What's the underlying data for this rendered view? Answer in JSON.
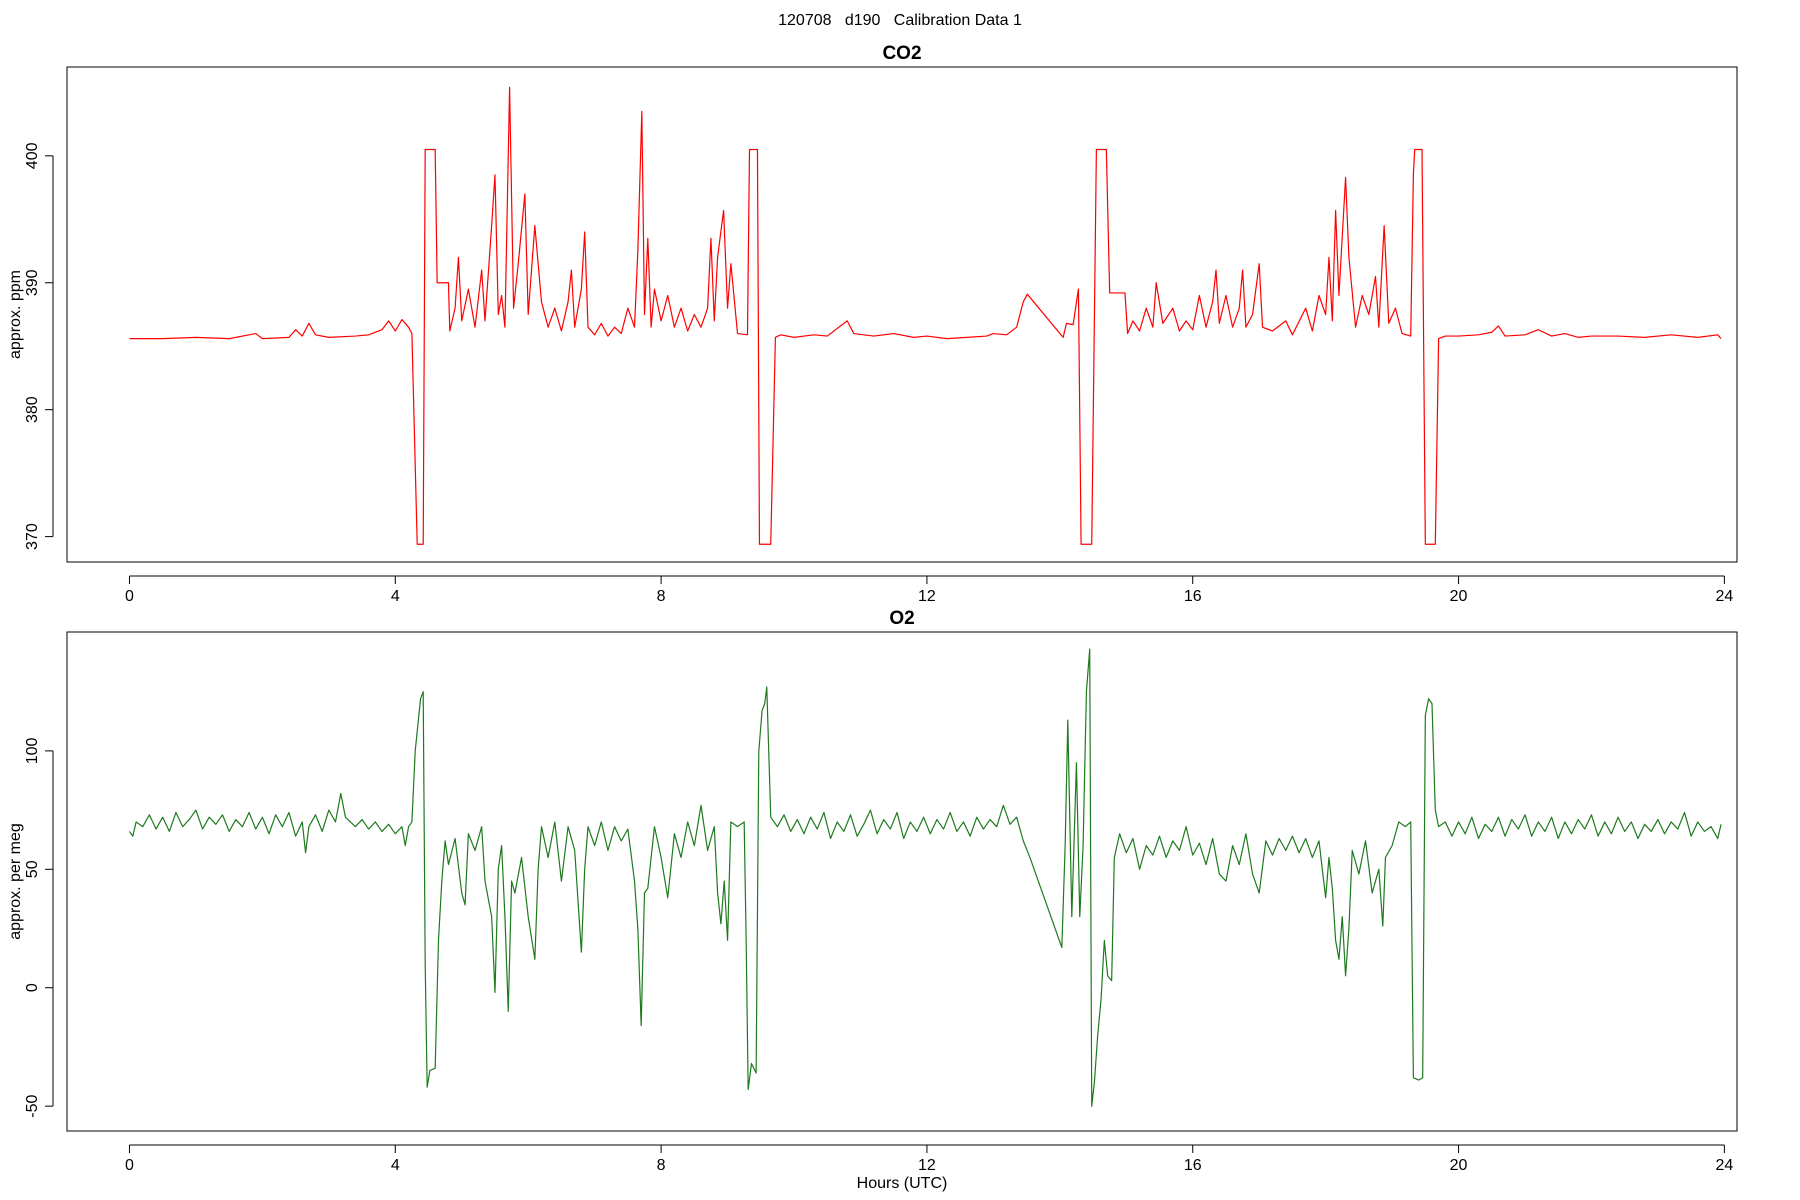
{
  "title": "120708   d190   Calibration Data 1",
  "chart_data": [
    {
      "type": "line",
      "title": "CO2",
      "y_label": "approx. ppm",
      "color": "#ff0000",
      "xlim": [
        -0.94,
        24.19
      ],
      "xticks": [
        0,
        4,
        8,
        12,
        16,
        20,
        24
      ],
      "ylim": [
        368,
        407
      ],
      "yticks": [
        370,
        380,
        390,
        400
      ],
      "x": [
        0.0,
        0.5,
        1.0,
        1.5,
        1.9,
        2.0,
        2.4,
        2.5,
        2.6,
        2.7,
        2.8,
        3.0,
        3.4,
        3.6,
        3.8,
        3.9,
        4.0,
        4.1,
        4.2,
        4.25,
        4.33,
        4.42,
        4.45,
        4.6,
        4.63,
        4.8,
        4.82,
        4.9,
        4.95,
        5.0,
        5.1,
        5.2,
        5.3,
        5.35,
        5.45,
        5.5,
        5.55,
        5.6,
        5.65,
        5.72,
        5.78,
        5.85,
        5.95,
        6.0,
        6.1,
        6.2,
        6.3,
        6.4,
        6.5,
        6.6,
        6.65,
        6.7,
        6.8,
        6.85,
        6.9,
        7.0,
        7.1,
        7.2,
        7.3,
        7.4,
        7.5,
        7.6,
        7.65,
        7.71,
        7.75,
        7.8,
        7.85,
        7.9,
        8.0,
        8.1,
        8.2,
        8.3,
        8.4,
        8.5,
        8.6,
        8.7,
        8.75,
        8.8,
        8.85,
        8.94,
        9.0,
        9.05,
        9.15,
        9.3,
        9.33,
        9.45,
        9.48,
        9.65,
        9.72,
        9.8,
        10.0,
        10.3,
        10.5,
        10.8,
        10.9,
        11.2,
        11.5,
        11.8,
        12.0,
        12.3,
        12.6,
        12.9,
        13.0,
        13.2,
        13.35,
        13.45,
        13.51,
        14.05,
        14.1,
        14.2,
        14.28,
        14.32,
        14.48,
        14.55,
        14.7,
        14.75,
        14.98,
        15.02,
        15.1,
        15.2,
        15.3,
        15.4,
        15.45,
        15.55,
        15.7,
        15.8,
        15.9,
        16.0,
        16.1,
        16.2,
        16.3,
        16.35,
        16.4,
        16.5,
        16.6,
        16.7,
        16.75,
        16.8,
        16.9,
        17.0,
        17.05,
        17.2,
        17.4,
        17.5,
        17.7,
        17.8,
        17.9,
        18.0,
        18.05,
        18.1,
        18.15,
        18.2,
        18.3,
        18.35,
        18.45,
        18.55,
        18.65,
        18.75,
        18.8,
        18.88,
        18.95,
        19.05,
        19.15,
        19.28,
        19.32,
        19.34,
        19.45,
        19.5,
        19.65,
        19.7,
        19.8,
        20.0,
        20.3,
        20.5,
        20.6,
        20.7,
        21.0,
        21.2,
        21.4,
        21.6,
        21.8,
        22.0,
        22.4,
        22.8,
        23.2,
        23.6,
        23.9,
        23.95
      ],
      "values": [
        385.6,
        385.6,
        385.7,
        385.6,
        386.0,
        385.6,
        385.7,
        386.3,
        385.8,
        386.8,
        385.9,
        385.7,
        385.8,
        385.9,
        386.3,
        387.0,
        386.2,
        387.1,
        386.5,
        386.0,
        369.4,
        369.4,
        400.5,
        400.5,
        390.0,
        390.0,
        386.2,
        388.0,
        392.0,
        387.0,
        389.5,
        386.5,
        391.0,
        387.0,
        394.5,
        398.5,
        387.5,
        389.0,
        386.5,
        405.4,
        388.0,
        391.5,
        397.0,
        387.5,
        394.5,
        388.5,
        386.5,
        388.0,
        386.2,
        388.5,
        391.0,
        386.5,
        389.5,
        394.0,
        386.5,
        385.9,
        386.8,
        385.8,
        386.5,
        386.0,
        388.0,
        386.5,
        392.5,
        403.5,
        387.5,
        393.5,
        386.5,
        389.5,
        387.0,
        389.0,
        386.5,
        388.0,
        386.2,
        387.5,
        386.5,
        388.0,
        393.5,
        387.0,
        392.0,
        395.7,
        388.0,
        391.5,
        386.0,
        385.9,
        400.5,
        400.5,
        369.4,
        369.4,
        385.7,
        385.9,
        385.7,
        385.9,
        385.8,
        387.0,
        386.0,
        385.8,
        386.0,
        385.7,
        385.8,
        385.6,
        385.7,
        385.8,
        386.0,
        385.9,
        386.5,
        388.5,
        389.1,
        385.7,
        386.8,
        386.7,
        389.5,
        369.4,
        369.4,
        400.5,
        400.5,
        389.2,
        389.2,
        386.0,
        387.0,
        386.2,
        388.0,
        386.5,
        390.0,
        386.8,
        388.0,
        386.2,
        387.0,
        386.3,
        389.0,
        386.5,
        388.5,
        391.0,
        386.8,
        389.0,
        386.5,
        388.0,
        391.0,
        386.5,
        387.5,
        391.5,
        386.5,
        386.2,
        387.0,
        385.9,
        388.0,
        386.2,
        389.0,
        387.5,
        392.0,
        387.0,
        395.7,
        389.0,
        398.3,
        392.0,
        386.5,
        389.0,
        387.5,
        390.5,
        386.5,
        394.5,
        386.8,
        388.0,
        386.0,
        385.8,
        398.5,
        400.5,
        400.5,
        369.4,
        369.4,
        385.6,
        385.8,
        385.8,
        385.9,
        386.1,
        386.6,
        385.8,
        385.9,
        386.3,
        385.8,
        386.0,
        385.7,
        385.8,
        385.8,
        385.7,
        385.9,
        385.7,
        385.9,
        385.6
      ]
    },
    {
      "type": "line",
      "title": "O2",
      "y_label": "approx. per meg",
      "x_label": "Hours (UTC)",
      "color": "#1e7a1e",
      "xlim": [
        -0.94,
        24.19
      ],
      "xticks": [
        0,
        4,
        8,
        12,
        16,
        20,
        24
      ],
      "ylim": [
        -60.5,
        150.2
      ],
      "yticks": [
        -50,
        0,
        50,
        100
      ],
      "x": [
        0.0,
        0.05,
        0.1,
        0.2,
        0.3,
        0.4,
        0.5,
        0.6,
        0.7,
        0.8,
        0.9,
        1.0,
        1.1,
        1.2,
        1.3,
        1.4,
        1.5,
        1.6,
        1.7,
        1.8,
        1.9,
        2.0,
        2.1,
        2.2,
        2.3,
        2.4,
        2.5,
        2.6,
        2.65,
        2.7,
        2.8,
        2.9,
        3.0,
        3.1,
        3.18,
        3.25,
        3.4,
        3.5,
        3.6,
        3.7,
        3.8,
        3.9,
        4.0,
        4.1,
        4.15,
        4.2,
        4.25,
        4.3,
        4.38,
        4.42,
        4.45,
        4.48,
        4.52,
        4.6,
        4.65,
        4.7,
        4.75,
        4.8,
        4.9,
        5.0,
        5.05,
        5.1,
        5.2,
        5.3,
        5.35,
        5.45,
        5.5,
        5.55,
        5.6,
        5.65,
        5.7,
        5.75,
        5.8,
        5.9,
        6.0,
        6.1,
        6.15,
        6.2,
        6.3,
        6.4,
        6.5,
        6.6,
        6.7,
        6.8,
        6.85,
        6.9,
        7.0,
        7.1,
        7.2,
        7.3,
        7.4,
        7.5,
        7.6,
        7.65,
        7.7,
        7.75,
        7.8,
        7.9,
        8.0,
        8.1,
        8.2,
        8.3,
        8.4,
        8.5,
        8.6,
        8.7,
        8.8,
        8.85,
        8.9,
        8.95,
        9.0,
        9.05,
        9.15,
        9.25,
        9.28,
        9.31,
        9.36,
        9.43,
        9.47,
        9.52,
        9.56,
        9.59,
        9.65,
        9.75,
        9.85,
        9.95,
        10.05,
        10.15,
        10.25,
        10.35,
        10.45,
        10.55,
        10.65,
        10.75,
        10.85,
        10.95,
        11.05,
        11.15,
        11.25,
        11.35,
        11.45,
        11.55,
        11.65,
        11.75,
        11.85,
        11.95,
        12.05,
        12.15,
        12.25,
        12.35,
        12.45,
        12.55,
        12.65,
        12.75,
        12.85,
        12.95,
        13.05,
        13.15,
        13.25,
        13.35,
        13.45,
        13.55,
        14.03,
        14.08,
        14.12,
        14.18,
        14.25,
        14.3,
        14.35,
        14.4,
        14.45,
        14.48,
        14.52,
        14.57,
        14.62,
        14.67,
        14.72,
        14.78,
        14.82,
        14.9,
        15.0,
        15.1,
        15.2,
        15.3,
        15.4,
        15.5,
        15.6,
        15.7,
        15.8,
        15.9,
        16.0,
        16.1,
        16.2,
        16.3,
        16.4,
        16.5,
        16.6,
        16.7,
        16.8,
        16.9,
        17.0,
        17.1,
        17.2,
        17.3,
        17.4,
        17.5,
        17.6,
        17.7,
        17.8,
        17.9,
        18.0,
        18.05,
        18.1,
        18.15,
        18.2,
        18.25,
        18.3,
        18.35,
        18.4,
        18.5,
        18.6,
        18.7,
        18.8,
        18.86,
        18.9,
        19.0,
        19.1,
        19.2,
        19.28,
        19.32,
        19.4,
        19.46,
        19.5,
        19.55,
        19.6,
        19.65,
        19.7,
        19.8,
        19.9,
        20.0,
        20.1,
        20.2,
        20.3,
        20.4,
        20.5,
        20.6,
        20.7,
        20.8,
        20.9,
        21.0,
        21.1,
        21.2,
        21.3,
        21.4,
        21.5,
        21.6,
        21.7,
        21.8,
        21.9,
        22.0,
        22.1,
        22.2,
        22.3,
        22.4,
        22.5,
        22.6,
        22.7,
        22.8,
        22.9,
        23.0,
        23.1,
        23.2,
        23.3,
        23.4,
        23.5,
        23.6,
        23.7,
        23.8,
        23.9,
        23.95
      ],
      "values": [
        66,
        64,
        70,
        68,
        73,
        67,
        72,
        66,
        74,
        68,
        71,
        75,
        67,
        72,
        69,
        73,
        66,
        71,
        68,
        74,
        67,
        72,
        65,
        73,
        68,
        74,
        64,
        70,
        57,
        68,
        73,
        66,
        75,
        70,
        82,
        72,
        68,
        71,
        67,
        70,
        66,
        69,
        65,
        68,
        60,
        68,
        70,
        100,
        122,
        125,
        10,
        -42,
        -35,
        -34,
        20,
        45,
        62,
        52,
        63,
        40,
        35,
        65,
        58,
        68,
        45,
        30,
        -2,
        50,
        60,
        30,
        -10,
        45,
        40,
        55,
        30,
        12,
        50,
        68,
        55,
        70,
        45,
        68,
        58,
        15,
        50,
        68,
        60,
        70,
        58,
        68,
        62,
        67,
        45,
        25,
        -16,
        40,
        42,
        68,
        55,
        38,
        65,
        55,
        70,
        60,
        77,
        58,
        68,
        40,
        27,
        45,
        20,
        70,
        68,
        70,
        20,
        -43,
        -32,
        -36,
        100,
        117,
        120,
        127,
        72,
        68,
        73,
        66,
        71,
        65,
        72,
        67,
        74,
        63,
        70,
        66,
        73,
        64,
        69,
        75,
        65,
        71,
        67,
        74,
        63,
        70,
        66,
        72,
        65,
        71,
        67,
        74,
        66,
        70,
        64,
        72,
        67,
        71,
        68,
        77,
        69,
        72,
        62,
        55,
        17,
        60,
        113,
        30,
        95,
        30,
        60,
        125,
        143,
        -50,
        -40,
        -20,
        -5,
        20,
        5,
        3,
        55,
        65,
        57,
        63,
        50,
        60,
        56,
        64,
        55,
        62,
        58,
        68,
        56,
        61,
        52,
        63,
        48,
        45,
        60,
        52,
        65,
        48,
        40,
        62,
        56,
        63,
        58,
        64,
        57,
        63,
        55,
        62,
        38,
        55,
        42,
        20,
        12,
        30,
        5,
        25,
        58,
        48,
        62,
        40,
        50,
        26,
        55,
        60,
        70,
        68,
        70,
        -38,
        -39,
        -38,
        115,
        122,
        120,
        75,
        68,
        70,
        64,
        70,
        65,
        72,
        63,
        69,
        66,
        72,
        64,
        71,
        67,
        73,
        64,
        70,
        66,
        72,
        63,
        70,
        65,
        71,
        67,
        73,
        64,
        70,
        65,
        72,
        66,
        70,
        63,
        69,
        66,
        71,
        65,
        70,
        67,
        74,
        64,
        70,
        66,
        68,
        63,
        69
      ]
    }
  ]
}
